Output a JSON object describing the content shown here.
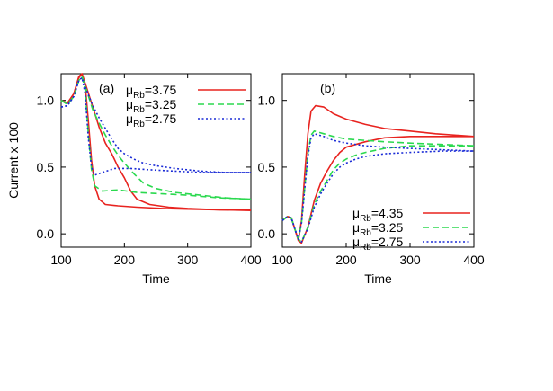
{
  "chart_data": [
    {
      "type": "line",
      "panel_label": "(a)",
      "xlabel": "Time",
      "ylabel": "Current x 100",
      "xlim": [
        100,
        400
      ],
      "ylim": [
        -0.1,
        1.2
      ],
      "xticks": [
        100,
        200,
        300,
        400
      ],
      "yticks": [
        0.0,
        0.5,
        1.0
      ],
      "ytick_labels": [
        "0.0",
        "0.5",
        "1.0"
      ],
      "legend_position": "top-right",
      "series": [
        {
          "name": "μRb=3.75",
          "legend_label_main": "μ",
          "legend_label_sub": "Rb",
          "legend_label_tail": "=3.75",
          "color": "#e8231f",
          "dash": "solid",
          "curves": [
            [
              [
                100,
                1.0
              ],
              [
                110,
                0.98
              ],
              [
                120,
                1.05
              ],
              [
                128,
                1.18
              ],
              [
                133,
                1.2
              ],
              [
                138,
                1.12
              ],
              [
                143,
                0.85
              ],
              [
                148,
                0.55
              ],
              [
                153,
                0.36
              ],
              [
                160,
                0.26
              ],
              [
                170,
                0.22
              ],
              [
                190,
                0.21
              ],
              [
                220,
                0.2
              ],
              [
                260,
                0.19
              ],
              [
                300,
                0.185
              ],
              [
                350,
                0.18
              ],
              [
                400,
                0.175
              ]
            ],
            [
              [
                100,
                1.0
              ],
              [
                110,
                0.98
              ],
              [
                120,
                1.05
              ],
              [
                128,
                1.17
              ],
              [
                133,
                1.2
              ],
              [
                140,
                1.1
              ],
              [
                150,
                0.95
              ],
              [
                160,
                0.8
              ],
              [
                170,
                0.68
              ],
              [
                180,
                0.6
              ],
              [
                190,
                0.5
              ],
              [
                200,
                0.42
              ],
              [
                210,
                0.32
              ],
              [
                220,
                0.26
              ],
              [
                240,
                0.22
              ],
              [
                270,
                0.2
              ],
              [
                300,
                0.19
              ],
              [
                350,
                0.18
              ],
              [
                400,
                0.18
              ]
            ]
          ]
        },
        {
          "name": "μRb=3.25",
          "legend_label_main": "μ",
          "legend_label_sub": "Rb",
          "legend_label_tail": "=3.25",
          "color": "#2bd94f",
          "dash": "dashed",
          "curves": [
            [
              [
                100,
                1.0
              ],
              [
                110,
                0.97
              ],
              [
                120,
                1.03
              ],
              [
                128,
                1.15
              ],
              [
                133,
                1.18
              ],
              [
                138,
                1.08
              ],
              [
                143,
                0.75
              ],
              [
                148,
                0.48
              ],
              [
                153,
                0.36
              ],
              [
                165,
                0.32
              ],
              [
                190,
                0.33
              ],
              [
                220,
                0.31
              ],
              [
                260,
                0.3
              ],
              [
                300,
                0.29
              ],
              [
                350,
                0.27
              ],
              [
                400,
                0.26
              ]
            ],
            [
              [
                100,
                1.0
              ],
              [
                110,
                0.97
              ],
              [
                120,
                1.03
              ],
              [
                128,
                1.15
              ],
              [
                133,
                1.18
              ],
              [
                140,
                1.08
              ],
              [
                150,
                0.93
              ],
              [
                160,
                0.83
              ],
              [
                170,
                0.74
              ],
              [
                180,
                0.66
              ],
              [
                190,
                0.59
              ],
              [
                200,
                0.53
              ],
              [
                215,
                0.45
              ],
              [
                230,
                0.38
              ],
              [
                250,
                0.34
              ],
              [
                280,
                0.31
              ],
              [
                320,
                0.29
              ],
              [
                360,
                0.27
              ],
              [
                400,
                0.26
              ]
            ]
          ]
        },
        {
          "name": "μRb=2.75",
          "legend_label_main": "μ",
          "legend_label_sub": "Rb",
          "legend_label_tail": "=2.75",
          "color": "#1a2bd6",
          "dash": "dotted",
          "curves": [
            [
              [
                100,
                0.95
              ],
              [
                110,
                0.96
              ],
              [
                120,
                1.03
              ],
              [
                128,
                1.15
              ],
              [
                133,
                1.17
              ],
              [
                138,
                1.05
              ],
              [
                143,
                0.72
              ],
              [
                148,
                0.5
              ],
              [
                153,
                0.44
              ],
              [
                165,
                0.46
              ],
              [
                185,
                0.49
              ],
              [
                210,
                0.49
              ],
              [
                240,
                0.48
              ],
              [
                280,
                0.47
              ],
              [
                320,
                0.46
              ],
              [
                360,
                0.46
              ],
              [
                400,
                0.46
              ]
            ],
            [
              [
                100,
                0.95
              ],
              [
                110,
                0.96
              ],
              [
                120,
                1.03
              ],
              [
                128,
                1.15
              ],
              [
                133,
                1.17
              ],
              [
                140,
                1.08
              ],
              [
                150,
                0.96
              ],
              [
                160,
                0.87
              ],
              [
                170,
                0.79
              ],
              [
                180,
                0.71
              ],
              [
                190,
                0.64
              ],
              [
                200,
                0.6
              ],
              [
                215,
                0.56
              ],
              [
                230,
                0.53
              ],
              [
                250,
                0.51
              ],
              [
                280,
                0.49
              ],
              [
                320,
                0.47
              ],
              [
                360,
                0.46
              ],
              [
                400,
                0.46
              ]
            ]
          ]
        }
      ]
    },
    {
      "type": "line",
      "panel_label": "(b)",
      "xlabel": "Time",
      "ylabel": "",
      "xlim": [
        100,
        400
      ],
      "ylim": [
        -0.1,
        1.2
      ],
      "xticks": [
        100,
        200,
        300,
        400
      ],
      "yticks": [
        0.0,
        0.5,
        1.0
      ],
      "ytick_labels": [
        "0.0",
        "0.5",
        "1.0"
      ],
      "legend_position": "bottom-right",
      "series": [
        {
          "name": "μRb=4.35",
          "legend_label_main": "μ",
          "legend_label_sub": "Rb",
          "legend_label_tail": "=4.35",
          "color": "#e8231f",
          "dash": "solid",
          "curves": [
            [
              [
                100,
                0.1
              ],
              [
                108,
                0.13
              ],
              [
                114,
                0.12
              ],
              [
                120,
                0.03
              ],
              [
                125,
                -0.05
              ],
              [
                130,
                0.1
              ],
              [
                135,
                0.45
              ],
              [
                140,
                0.75
              ],
              [
                145,
                0.92
              ],
              [
                152,
                0.96
              ],
              [
                165,
                0.95
              ],
              [
                180,
                0.9
              ],
              [
                200,
                0.86
              ],
              [
                230,
                0.82
              ],
              [
                260,
                0.79
              ],
              [
                300,
                0.77
              ],
              [
                340,
                0.75
              ],
              [
                370,
                0.74
              ],
              [
                400,
                0.73
              ]
            ],
            [
              [
                100,
                0.1
              ],
              [
                108,
                0.13
              ],
              [
                114,
                0.12
              ],
              [
                120,
                0.03
              ],
              [
                125,
                -0.05
              ],
              [
                130,
                -0.07
              ],
              [
                140,
                0.05
              ],
              [
                150,
                0.25
              ],
              [
                160,
                0.38
              ],
              [
                170,
                0.47
              ],
              [
                180,
                0.55
              ],
              [
                190,
                0.61
              ],
              [
                200,
                0.65
              ],
              [
                215,
                0.67
              ],
              [
                230,
                0.69
              ],
              [
                260,
                0.72
              ],
              [
                300,
                0.73
              ],
              [
                340,
                0.73
              ],
              [
                400,
                0.73
              ]
            ]
          ]
        },
        {
          "name": "μRb=3.25",
          "legend_label_main": "μ",
          "legend_label_sub": "Rb",
          "legend_label_tail": "=3.25",
          "color": "#2bd94f",
          "dash": "dashed",
          "curves": [
            [
              [
                100,
                0.1
              ],
              [
                108,
                0.13
              ],
              [
                114,
                0.12
              ],
              [
                120,
                0.03
              ],
              [
                125,
                -0.04
              ],
              [
                130,
                0.08
              ],
              [
                135,
                0.35
              ],
              [
                140,
                0.6
              ],
              [
                145,
                0.74
              ],
              [
                150,
                0.77
              ],
              [
                165,
                0.75
              ],
              [
                180,
                0.73
              ],
              [
                200,
                0.71
              ],
              [
                230,
                0.7
              ],
              [
                260,
                0.69
              ],
              [
                300,
                0.68
              ],
              [
                350,
                0.67
              ],
              [
                400,
                0.66
              ]
            ],
            [
              [
                100,
                0.1
              ],
              [
                108,
                0.13
              ],
              [
                114,
                0.12
              ],
              [
                120,
                0.03
              ],
              [
                125,
                -0.04
              ],
              [
                130,
                -0.06
              ],
              [
                140,
                0.05
              ],
              [
                150,
                0.22
              ],
              [
                160,
                0.32
              ],
              [
                170,
                0.4
              ],
              [
                180,
                0.48
              ],
              [
                190,
                0.53
              ],
              [
                200,
                0.56
              ],
              [
                215,
                0.59
              ],
              [
                230,
                0.61
              ],
              [
                260,
                0.64
              ],
              [
                300,
                0.66
              ],
              [
                350,
                0.66
              ],
              [
                400,
                0.66
              ]
            ]
          ]
        },
        {
          "name": "μRb=2.75",
          "legend_label_main": "μ",
          "legend_label_sub": "Rb",
          "legend_label_tail": "=2.75",
          "color": "#1a2bd6",
          "dash": "dotted",
          "curves": [
            [
              [
                100,
                0.1
              ],
              [
                108,
                0.13
              ],
              [
                114,
                0.12
              ],
              [
                120,
                0.03
              ],
              [
                125,
                -0.04
              ],
              [
                130,
                0.08
              ],
              [
                135,
                0.34
              ],
              [
                140,
                0.58
              ],
              [
                145,
                0.72
              ],
              [
                150,
                0.75
              ],
              [
                165,
                0.73
              ],
              [
                180,
                0.7
              ],
              [
                200,
                0.68
              ],
              [
                230,
                0.66
              ],
              [
                260,
                0.65
              ],
              [
                300,
                0.64
              ],
              [
                350,
                0.63
              ],
              [
                400,
                0.62
              ]
            ],
            [
              [
                100,
                0.1
              ],
              [
                108,
                0.13
              ],
              [
                114,
                0.12
              ],
              [
                120,
                0.03
              ],
              [
                125,
                -0.04
              ],
              [
                130,
                -0.06
              ],
              [
                140,
                0.04
              ],
              [
                150,
                0.2
              ],
              [
                160,
                0.3
              ],
              [
                170,
                0.38
              ],
              [
                180,
                0.45
              ],
              [
                190,
                0.5
              ],
              [
                200,
                0.53
              ],
              [
                215,
                0.56
              ],
              [
                230,
                0.58
              ],
              [
                260,
                0.6
              ],
              [
                300,
                0.61
              ],
              [
                350,
                0.62
              ],
              [
                400,
                0.62
              ]
            ]
          ]
        }
      ]
    }
  ]
}
